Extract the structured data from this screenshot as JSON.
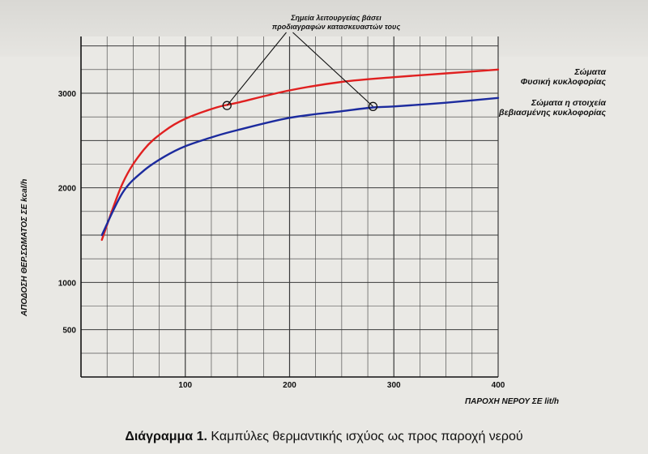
{
  "chart_data": {
    "type": "line",
    "xlabel": "ΠΑΡΟΧΗ ΝΕΡΟΥ ΣΕ lit/h",
    "ylabel": "ΑΠΟΔΟΣΗ ΘΕΡ.ΣΩΜΑΤΟΣ ΣΕ kcal/h",
    "xlim": [
      0,
      400
    ],
    "ylim": [
      0,
      3600
    ],
    "x_ticks": [
      100,
      200,
      300,
      400
    ],
    "y_ticks": [
      500,
      1000,
      2000,
      3000
    ],
    "x_tick_labels": [
      "100",
      "200",
      "300",
      "400"
    ],
    "y_tick_labels": [
      "500",
      "1000",
      "2000",
      "3000"
    ],
    "grid": true,
    "series": [
      {
        "name": "Σώματα Φυσική κυκλοφορίας",
        "color": "#e02020",
        "legend_lines": [
          "Σώματα",
          "Φυσική κυκλοφορίας"
        ],
        "x": [
          20,
          40,
          60,
          80,
          100,
          130,
          150,
          200,
          250,
          300,
          350,
          400
        ],
        "y": [
          1450,
          2050,
          2400,
          2600,
          2730,
          2850,
          2900,
          3030,
          3120,
          3170,
          3210,
          3250
        ]
      },
      {
        "name": "Σώματα η στοιχεία βεβιασμένης κυκλοφορίας",
        "color": "#1c2b9e",
        "legend_lines": [
          "Σώματα η στοιχεία",
          "βεβιασμένης κυκλοφορίας"
        ],
        "x": [
          20,
          40,
          60,
          80,
          100,
          130,
          150,
          200,
          250,
          280,
          300,
          350,
          400
        ],
        "y": [
          1500,
          1950,
          2180,
          2330,
          2440,
          2550,
          2610,
          2740,
          2810,
          2850,
          2860,
          2900,
          2950
        ]
      }
    ],
    "operating_points": [
      {
        "series": 0,
        "x": 140,
        "y": 2870
      },
      {
        "series": 1,
        "x": 280,
        "y": 2860
      }
    ],
    "annotation": [
      "Σημεία λειτουργείας βάσει",
      "προδιαγραφών κατασκευαστών τους"
    ],
    "colors": {
      "grid": "#3a3a3a",
      "background": "#eae9e5"
    }
  },
  "caption": {
    "strong": "Διάγραμμα 1.",
    "text": " Καμπύλες θερμαντικής ισχύος ως προς παροχή νερού"
  }
}
